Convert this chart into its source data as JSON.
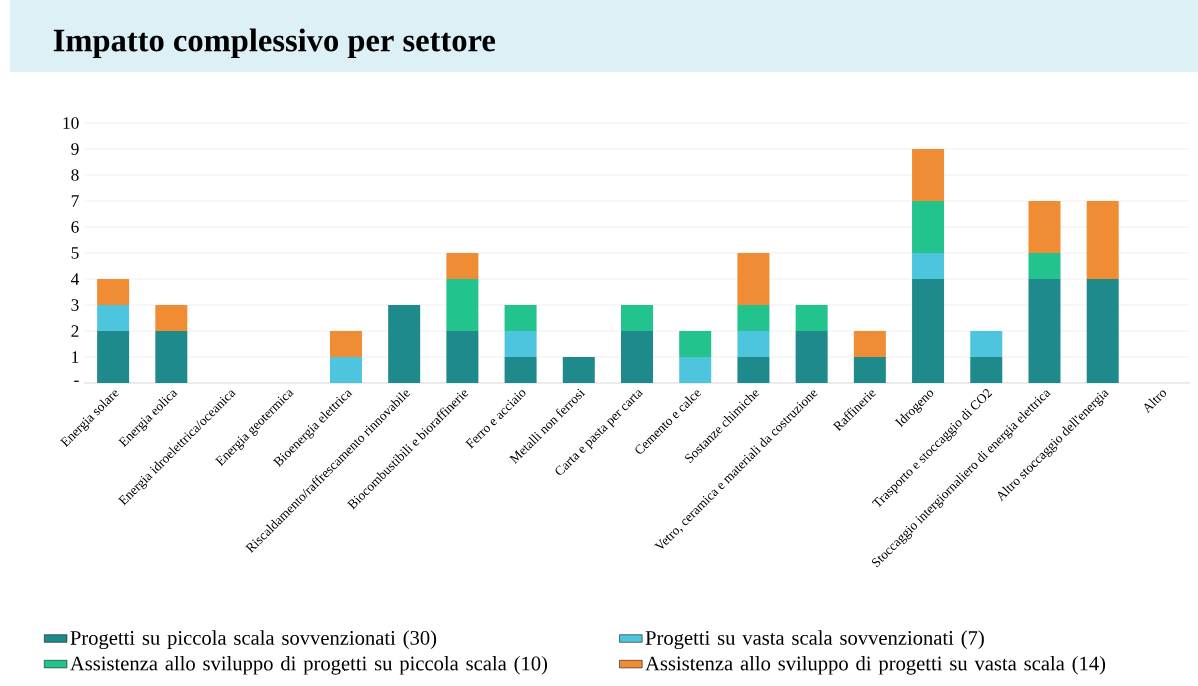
{
  "chart_data": {
    "type": "bar",
    "title": "Impatto complessivo per settore",
    "stacked": true,
    "categories": [
      "Energia solare",
      "Energia eolica",
      "Energia idroelettrica/oceanica",
      "Energia geotermica",
      "Bioenergia elettrica",
      "Riscaldamento/raffrescamento rinnovabile",
      "Biocombustibili e bioraffinerie",
      "Ferro e acciaio",
      "Metalli non ferrosi",
      "Carta e pasta per carta",
      "Cemento e calce",
      "Sostanze chimiche",
      "Vetro, ceramica e materiali da costruzione",
      "Raffinerie",
      "Idrogeno",
      "Trasporto e stoccaggio di CO2",
      "Stoccaggio intergiornaliero di energia elettrica",
      "Altro stoccaggio dell'energia",
      "Altro"
    ],
    "series": [
      {
        "name": "Progetti su piccola scala sovvenzionati (30)",
        "color": "#1f8a8c",
        "values": [
          2,
          2,
          0,
          0,
          0,
          3,
          2,
          1,
          1,
          2,
          0,
          1,
          2,
          1,
          4,
          1,
          4,
          4,
          0
        ]
      },
      {
        "name": "Progetti su vasta scala sovvenzionati (7)",
        "color": "#4ec5de",
        "values": [
          1,
          0,
          0,
          0,
          1,
          0,
          0,
          1,
          0,
          0,
          1,
          1,
          0,
          0,
          1,
          1,
          0,
          0,
          0
        ]
      },
      {
        "name": "Assistenza allo sviluppo di progetti su piccola scala (10)",
        "color": "#22c38c",
        "values": [
          0,
          0,
          0,
          0,
          0,
          0,
          2,
          1,
          0,
          1,
          1,
          1,
          1,
          0,
          2,
          0,
          1,
          0,
          0
        ]
      },
      {
        "name": "Assistenza allo sviluppo di progetti su vasta scala (14)",
        "color": "#f08c33",
        "values": [
          1,
          1,
          0,
          0,
          1,
          0,
          1,
          0,
          0,
          0,
          0,
          2,
          0,
          1,
          2,
          0,
          2,
          3,
          0
        ]
      }
    ],
    "ylim": [
      0,
      10
    ],
    "yticks": [
      {
        "value": 0,
        "label": "-"
      },
      1,
      2,
      3,
      4,
      5,
      6,
      7,
      8,
      9,
      10
    ],
    "grid": "y",
    "legend": "bottom"
  }
}
